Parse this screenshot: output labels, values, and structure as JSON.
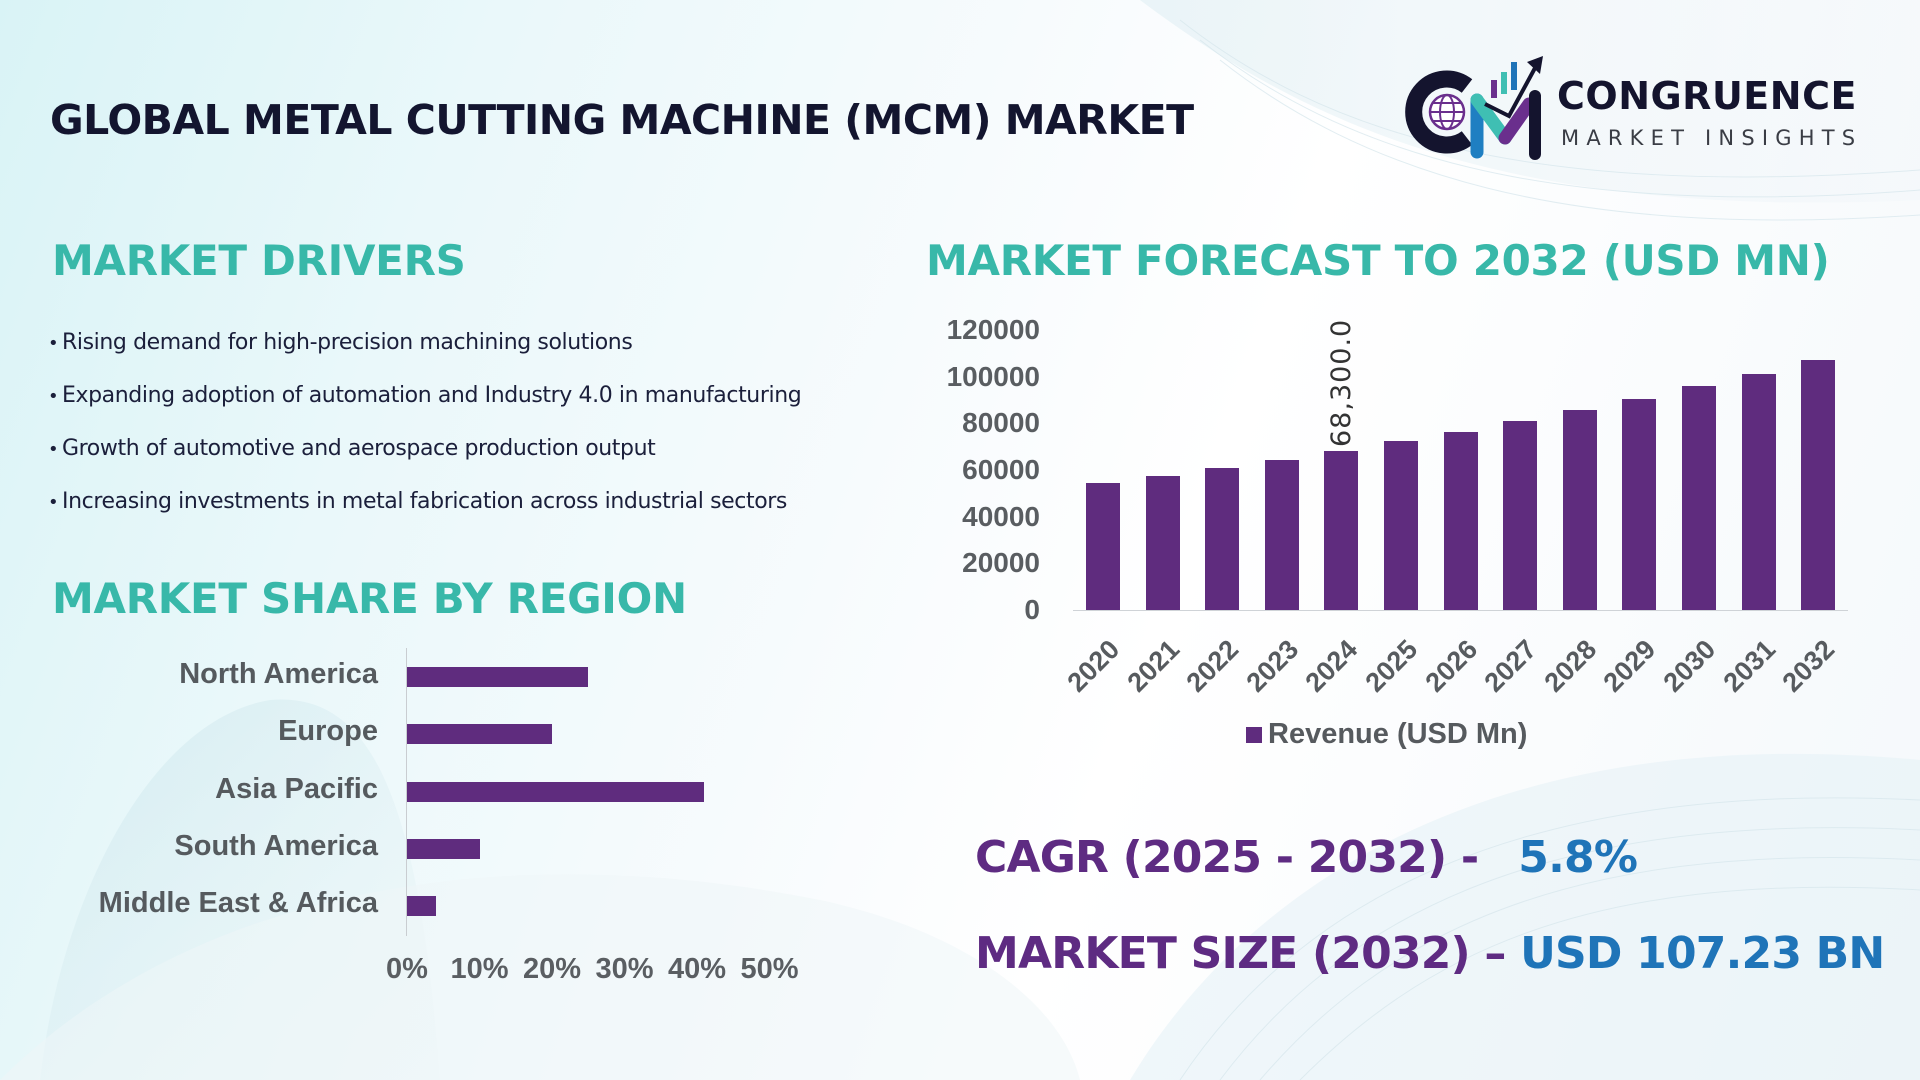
{
  "header": {
    "title": "GLOBAL METAL CUTTING MACHINE (MCM) MARKET",
    "logo": {
      "name": "CONGRUENCE",
      "tagline": "MARKET INSIGHTS",
      "icon": "cm-globe-growth-arrow-icon"
    }
  },
  "drivers": {
    "heading": "MARKET DRIVERS",
    "bullet": "•",
    "items": [
      "Rising demand for high-precision machining solutions",
      "Expanding adoption of automation and Industry 4.0 in manufacturing",
      "Growth of automotive and aerospace production output",
      "Increasing investments in metal fabrication across industrial sectors"
    ]
  },
  "region": {
    "heading": "MARKET SHARE BY REGION"
  },
  "forecast": {
    "heading": "MARKET FORECAST TO 2032 (USD MN)"
  },
  "stats": {
    "cagr_label": "CAGR (2025 - 2032) -",
    "cagr_value": "5.8%",
    "size_label": "MARKET SIZE (2032) –",
    "size_value": "USD 107.23 BN"
  },
  "colors": {
    "heading_teal": "#38b8a9",
    "bar_purple": "#5f2c7e",
    "stat_purple": "#5e2b82",
    "stat_blue": "#1f74b8",
    "title_navy": "#13152f"
  },
  "chart_data": [
    {
      "type": "bar",
      "orientation": "horizontal",
      "title": "MARKET SHARE BY REGION",
      "categories": [
        "North America",
        "Europe",
        "Asia Pacific",
        "South America",
        "Middle East & Africa"
      ],
      "values": [
        25,
        20,
        41,
        10,
        4
      ],
      "unit": "%",
      "xlim": [
        0,
        50
      ],
      "xticks": [
        "0%",
        "10%",
        "20%",
        "30%",
        "40%",
        "50%"
      ],
      "grid": false,
      "legend": null
    },
    {
      "type": "bar",
      "orientation": "vertical",
      "title": "MARKET FORECAST TO 2032 (USD MN)",
      "categories": [
        "2020",
        "2021",
        "2022",
        "2023",
        "2024",
        "2025",
        "2026",
        "2027",
        "2028",
        "2029",
        "2030",
        "2031",
        "2032"
      ],
      "series": [
        {
          "name": "Revenue (USD Mn)",
          "values": [
            54500,
            57500,
            61000,
            64500,
            68300,
            72300,
            76500,
            81000,
            85700,
            90500,
            96000,
            101300,
            107230
          ]
        }
      ],
      "annotations": [
        {
          "category": "2024",
          "label": "68,300.0"
        }
      ],
      "ylim": [
        0,
        120000
      ],
      "yticks": [
        "0",
        "20000",
        "40000",
        "60000",
        "80000",
        "100000",
        "120000"
      ],
      "legend_position": "bottom",
      "grid": false
    }
  ]
}
